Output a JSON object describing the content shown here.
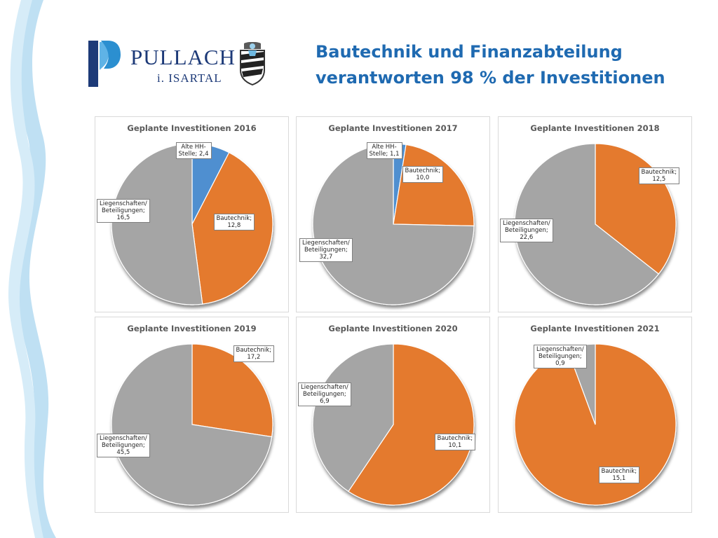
{
  "header": {
    "logo_name": "PULLACH",
    "logo_sub": "i. ISARTAL",
    "headline_line1": "Bautechnik und Finanzabteilung",
    "headline_line2": "verantworten 98 % der Investitionen"
  },
  "colors": {
    "bautechnik": "#e47a2e",
    "liegenschaften": "#a5a5a5",
    "alte_hh": "#4f8fd0",
    "headline": "#1f6ab1",
    "brand": "#1d3a78"
  },
  "chart_data": [
    {
      "type": "pie",
      "title": "Geplante Investitionen 2016",
      "slices": [
        {
          "label_lines": [
            "Alte HH-",
            "Stelle; 2,4"
          ],
          "value": 2.4,
          "category": "alte_hh"
        },
        {
          "label_lines": [
            "Bautechnik;",
            "12,8"
          ],
          "value": 12.8,
          "category": "bautechnik"
        },
        {
          "label_lines": [
            "Liegenschaften/",
            "Beteiligungen;",
            "16,5"
          ],
          "value": 16.5,
          "category": "liegenschaften"
        }
      ]
    },
    {
      "type": "pie",
      "title": "Geplante Investitionen 2017",
      "slices": [
        {
          "label_lines": [
            "Alte HH-",
            "Stelle; 1,1"
          ],
          "value": 1.1,
          "category": "alte_hh"
        },
        {
          "label_lines": [
            "Bautechnik;",
            "10,0"
          ],
          "value": 10.0,
          "category": "bautechnik"
        },
        {
          "label_lines": [
            "Liegenschaften/",
            "Beteiligungen;",
            "32,7"
          ],
          "value": 32.7,
          "category": "liegenschaften"
        }
      ]
    },
    {
      "type": "pie",
      "title": "Geplante Investitionen 2018",
      "slices": [
        {
          "label_lines": [
            "Bautechnik;",
            "12,5"
          ],
          "value": 12.5,
          "category": "bautechnik"
        },
        {
          "label_lines": [
            "Liegenschaften/",
            "Beteiligungen;",
            "22,6"
          ],
          "value": 22.6,
          "category": "liegenschaften"
        }
      ]
    },
    {
      "type": "pie",
      "title": "Geplante Investitionen 2019",
      "slices": [
        {
          "label_lines": [
            "Bautechnik;",
            "17,2"
          ],
          "value": 17.2,
          "category": "bautechnik"
        },
        {
          "label_lines": [
            "Liegenschaften/",
            "Beteiligungen;",
            "45,5"
          ],
          "value": 45.5,
          "category": "liegenschaften"
        }
      ]
    },
    {
      "type": "pie",
      "title": "Geplante Investitionen 2020",
      "slices": [
        {
          "label_lines": [
            "Bautechnik;",
            "10,1"
          ],
          "value": 10.1,
          "category": "bautechnik"
        },
        {
          "label_lines": [
            "Liegenschaften/",
            "Beteiligungen;",
            "6,9"
          ],
          "value": 6.9,
          "category": "liegenschaften"
        }
      ]
    },
    {
      "type": "pie",
      "title": "Geplante Investitionen 2021",
      "slices": [
        {
          "label_lines": [
            "Bautechnik;",
            "15,1"
          ],
          "value": 15.1,
          "category": "bautechnik"
        },
        {
          "label_lines": [
            "Liegenschaften/",
            "Beteiligungen;",
            "0,9"
          ],
          "value": 0.9,
          "category": "liegenschaften"
        }
      ]
    }
  ]
}
